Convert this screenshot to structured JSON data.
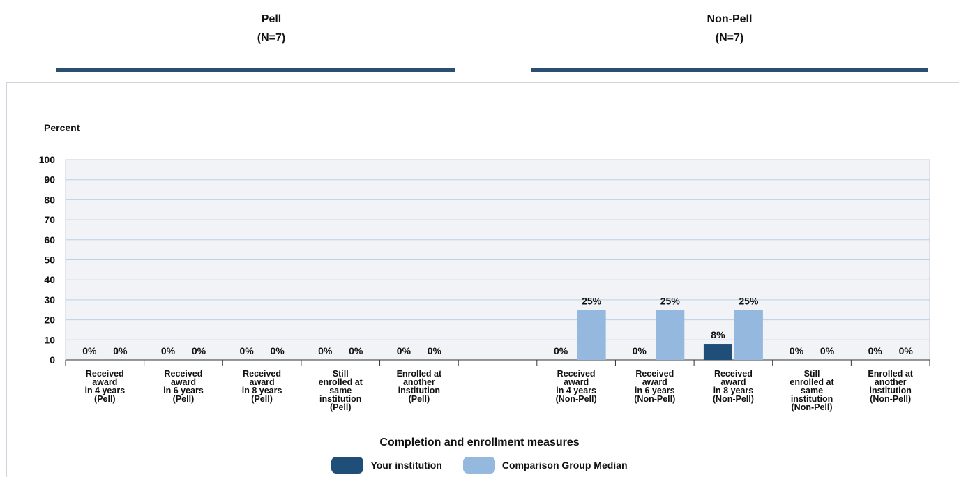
{
  "header": {
    "groups": [
      {
        "name": "Pell",
        "n": "(N=7)"
      },
      {
        "name": "Non-Pell",
        "n": "(N=7)"
      }
    ],
    "rule_color": "#2b4f73"
  },
  "chart_data": {
    "type": "bar",
    "ylabel": "Percent",
    "xlabel": "Completion and enrollment measures",
    "ylim": [
      0,
      100
    ],
    "yticks": [
      0,
      10,
      20,
      30,
      40,
      50,
      60,
      70,
      80,
      90,
      100
    ],
    "grid": true,
    "legend_placement": "bottom-center",
    "categories": [
      "Received award in 4 years (Pell)",
      "Received award in 6 years (Pell)",
      "Received award in 8 years (Pell)",
      "Still enrolled at same institution (Pell)",
      "Enrolled at another institution (Pell)",
      "",
      "Received award in 4 years (Non-Pell)",
      "Received award in 6 years (Non-Pell)",
      "Received award in 8 years (Non-Pell)",
      "Still enrolled at same institution (Non-Pell)",
      "Enrolled at another institution (Non-Pell)"
    ],
    "category_lines": [
      [
        "Received",
        "award",
        "in 4 years",
        "(Pell)"
      ],
      [
        "Received",
        "award",
        "in 6 years",
        "(Pell)"
      ],
      [
        "Received",
        "award",
        "in 8 years",
        "(Pell)"
      ],
      [
        "Still",
        "enrolled at",
        "same",
        "institution",
        "(Pell)"
      ],
      [
        "Enrolled at",
        "another",
        "institution",
        "(Pell)"
      ],
      [],
      [
        "Received",
        "award",
        "in 4 years",
        "(Non-Pell)"
      ],
      [
        "Received",
        "award",
        "in 6 years",
        "(Non-Pell)"
      ],
      [
        "Received",
        "award",
        "in 8 years",
        "(Non-Pell)"
      ],
      [
        "Still",
        "enrolled at",
        "same",
        "institution",
        "(Non-Pell)"
      ],
      [
        "Enrolled at",
        "another",
        "institution",
        "(Non-Pell)"
      ]
    ],
    "series": [
      {
        "name": "Your institution",
        "color": "#1f4e79",
        "values": [
          0,
          0,
          0,
          0,
          0,
          null,
          0,
          0,
          8,
          0,
          0
        ],
        "labels": [
          "0%",
          "0%",
          "0%",
          "0%",
          "0%",
          "",
          "0%",
          "0%",
          "8%",
          "0%",
          "0%"
        ]
      },
      {
        "name": "Comparison Group Median",
        "color": "#95b8df",
        "values": [
          0,
          0,
          0,
          0,
          0,
          null,
          25,
          25,
          25,
          0,
          0
        ],
        "labels": [
          "0%",
          "0%",
          "0%",
          "0%",
          "0%",
          "",
          "25%",
          "25%",
          "25%",
          "0%",
          "0%"
        ]
      }
    ],
    "plot_background": "#f1f3f6",
    "gridline_color": "#b9d2ea"
  }
}
